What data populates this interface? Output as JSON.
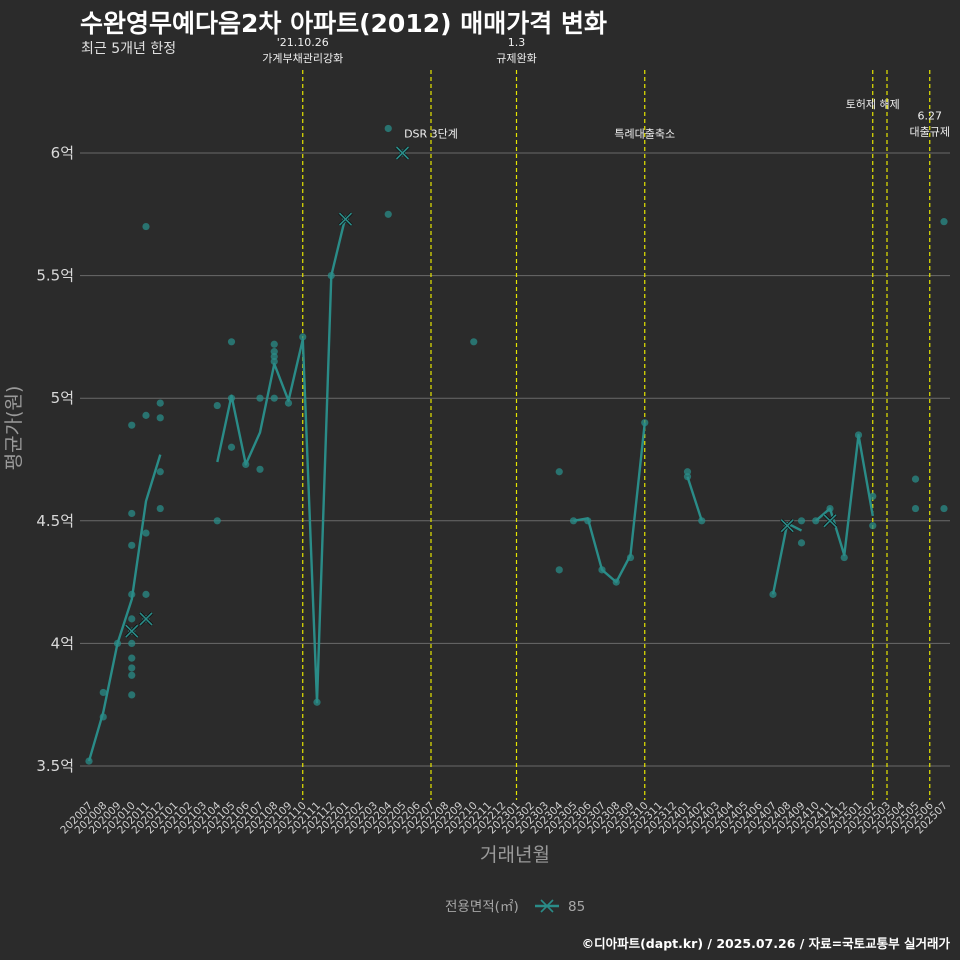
{
  "title": "수완영무예다음2차 아파트(2012) 매매가격 변화",
  "subtitle": "최근 5개년 한정",
  "footer": "©디아파트(dapt.kr) / 2025.07.26 / 자료=국토교통부 실거래가",
  "colors": {
    "background": "#2b2b2b",
    "series": "#2a8c88",
    "event_line": "#e6e600",
    "grid": "#6a6a6a"
  },
  "chart_data": {
    "type": "line",
    "xlabel": "거래년월",
    "ylabel": "평균가(원)",
    "ylim": [
      3.45,
      6.5
    ],
    "yticks": [
      3.5,
      4,
      4.5,
      5,
      5.5,
      6
    ],
    "ytick_labels": [
      "3.5억",
      "4억",
      "4.5억",
      "5억",
      "5.5억",
      "6억"
    ],
    "months": [
      "202007",
      "202008",
      "202009",
      "202010",
      "202011",
      "202012",
      "202101",
      "202102",
      "202103",
      "202104",
      "202105",
      "202106",
      "202107",
      "202108",
      "202109",
      "202110",
      "202111",
      "202112",
      "202201",
      "202202",
      "202203",
      "202204",
      "202205",
      "202206",
      "202207",
      "202208",
      "202209",
      "202210",
      "202211",
      "202212",
      "202301",
      "202302",
      "202303",
      "202304",
      "202305",
      "202306",
      "202307",
      "202308",
      "202309",
      "202310",
      "202311",
      "202312",
      "202401",
      "202402",
      "202403",
      "202404",
      "202405",
      "202406",
      "202407",
      "202408",
      "202409",
      "202410",
      "202411",
      "202412",
      "202501",
      "202502",
      "202503",
      "202504",
      "202505",
      "202506",
      "202507"
    ],
    "legend_title": "전용면적(㎡)",
    "series": [
      {
        "name": "85",
        "line_segments": [
          [
            [
              "202007",
              3.52
            ],
            [
              "202008",
              3.72
            ],
            [
              "202009",
              4.0
            ],
            [
              "202010",
              4.18
            ],
            [
              "202011",
              4.58
            ],
            [
              "202012",
              4.77
            ]
          ],
          [
            [
              "202104",
              4.74
            ],
            [
              "202105",
              5.01
            ],
            [
              "202106",
              4.73
            ],
            [
              "202107",
              4.86
            ],
            [
              "202108",
              5.14
            ],
            [
              "202109",
              4.99
            ],
            [
              "202110",
              5.24
            ],
            [
              "202111",
              3.76
            ],
            [
              "202112",
              5.5
            ],
            [
              "202201",
              5.74
            ]
          ],
          [
            [
              "202305",
              4.5
            ],
            [
              "202306",
              4.51
            ],
            [
              "202307",
              4.3
            ],
            [
              "202308",
              4.25
            ],
            [
              "202309",
              4.36
            ],
            [
              "202310",
              4.9
            ]
          ],
          [
            [
              "202401",
              4.68
            ],
            [
              "202402",
              4.5
            ]
          ],
          [
            [
              "202407",
              4.2
            ],
            [
              "202408",
              4.49
            ],
            [
              "202409",
              4.46
            ]
          ],
          [
            [
              "202410",
              4.5
            ],
            [
              "202411",
              4.55
            ],
            [
              "202412",
              4.36
            ],
            [
              "202501",
              4.85
            ],
            [
              "202502",
              4.52
            ]
          ]
        ],
        "cross_markers": [
          [
            "202010",
            4.05
          ],
          [
            "202011",
            4.1
          ],
          [
            "202201",
            5.73
          ],
          [
            "202205",
            6.0
          ],
          [
            "202408",
            4.48
          ],
          [
            "202411",
            4.5
          ]
        ],
        "points": [
          [
            "202007",
            3.52
          ],
          [
            "202008",
            3.8
          ],
          [
            "202008",
            3.7
          ],
          [
            "202009",
            4.0
          ],
          [
            "202010",
            4.2
          ],
          [
            "202010",
            4.4
          ],
          [
            "202010",
            4.53
          ],
          [
            "202010",
            4.89
          ],
          [
            "202010",
            4.1
          ],
          [
            "202010",
            4.05
          ],
          [
            "202010",
            4.0
          ],
          [
            "202010",
            3.94
          ],
          [
            "202010",
            3.9
          ],
          [
            "202010",
            3.87
          ],
          [
            "202010",
            3.79
          ],
          [
            "202011",
            5.7
          ],
          [
            "202011",
            4.93
          ],
          [
            "202011",
            4.45
          ],
          [
            "202011",
            4.2
          ],
          [
            "202011",
            4.1
          ],
          [
            "202012",
            4.98
          ],
          [
            "202012",
            4.92
          ],
          [
            "202012",
            4.7
          ],
          [
            "202012",
            4.55
          ],
          [
            "202104",
            4.97
          ],
          [
            "202104",
            4.5
          ],
          [
            "202105",
            5.23
          ],
          [
            "202105",
            5.0
          ],
          [
            "202105",
            4.8
          ],
          [
            "202106",
            4.73
          ],
          [
            "202107",
            5.0
          ],
          [
            "202107",
            4.71
          ],
          [
            "202108",
            5.22
          ],
          [
            "202108",
            5.19
          ],
          [
            "202108",
            5.17
          ],
          [
            "202108",
            5.15
          ],
          [
            "202108",
            5.0
          ],
          [
            "202109",
            4.98
          ],
          [
            "202110",
            5.25
          ],
          [
            "202111",
            3.76
          ],
          [
            "202112",
            5.5
          ],
          [
            "202201",
            5.73
          ],
          [
            "202204",
            6.1
          ],
          [
            "202204",
            5.75
          ],
          [
            "202205",
            6.0
          ],
          [
            "202210",
            5.23
          ],
          [
            "202304",
            4.7
          ],
          [
            "202304",
            4.3
          ],
          [
            "202305",
            4.5
          ],
          [
            "202306",
            4.5
          ],
          [
            "202307",
            4.3
          ],
          [
            "202308",
            4.25
          ],
          [
            "202309",
            4.35
          ],
          [
            "202310",
            4.9
          ],
          [
            "202401",
            4.7
          ],
          [
            "202401",
            4.68
          ],
          [
            "202402",
            4.5
          ],
          [
            "202407",
            4.2
          ],
          [
            "202408",
            4.48
          ],
          [
            "202409",
            4.5
          ],
          [
            "202409",
            4.41
          ],
          [
            "202410",
            4.5
          ],
          [
            "202411",
            4.55
          ],
          [
            "202412",
            4.35
          ],
          [
            "202501",
            4.85
          ],
          [
            "202502",
            4.6
          ],
          [
            "202502",
            4.48
          ],
          [
            "202505",
            4.67
          ],
          [
            "202505",
            4.55
          ],
          [
            "202507",
            5.72
          ],
          [
            "202507",
            4.55
          ]
        ]
      }
    ],
    "events": [
      {
        "month": "202110",
        "lines": [
          "'21.10.26",
          "가계부채관리강화"
        ],
        "label_y": 6.42
      },
      {
        "month": "202207",
        "lines": [
          "DSR 3단계"
        ],
        "label_y": 6.08
      },
      {
        "month": "202301",
        "lines": [
          "1.3",
          "규제완화"
        ],
        "label_y": 6.42
      },
      {
        "month": "202310",
        "lines": [
          "특례대출축소"
        ],
        "label_y": 6.08
      },
      {
        "month": "202502",
        "lines": [
          "토허제 해제"
        ],
        "label_y": 6.2
      },
      {
        "month": "202503",
        "lines": [],
        "label_y": null
      },
      {
        "month": "202506",
        "lines": [
          "6.27",
          "대출규제"
        ],
        "label_y": 6.12
      }
    ]
  }
}
